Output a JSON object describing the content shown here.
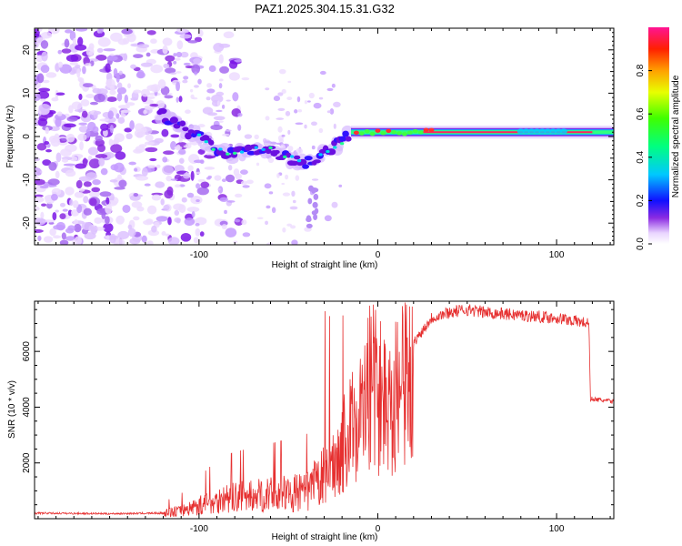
{
  "chart_data": [
    {
      "type": "heatmap",
      "title": "PAZ1.2025.304.15.31.G32",
      "xlabel": "Height of straight line (km)",
      "ylabel": "Frequency (Hz)",
      "xlim": [
        -192,
        132
      ],
      "ylim": [
        -25,
        25
      ],
      "xticks": [
        -100,
        0,
        100
      ],
      "yticks": [
        -20,
        -10,
        0,
        10,
        20
      ],
      "colorbar": {
        "label": "Normalized spectral amplitude",
        "range": [
          0,
          1
        ],
        "ticks": [
          "0.0",
          "0.2",
          "0.4",
          "0.6",
          "0.8"
        ]
      },
      "ridge": {
        "x": [
          -120,
          -110,
          -100,
          -90,
          -80,
          -70,
          -60,
          -50,
          -40,
          -30,
          -20,
          -15,
          -10,
          0,
          10,
          20,
          40,
          60,
          80,
          100,
          132
        ],
        "y": [
          5,
          2,
          0,
          -3,
          -4,
          -3,
          -3,
          -5,
          -6,
          -4,
          -1,
          1,
          1,
          2,
          1,
          1,
          1,
          1,
          1,
          1,
          1
        ]
      }
    },
    {
      "type": "line",
      "xlabel": "Height of straight line (km)",
      "ylabel": "SNR (10 * v/v)",
      "xlim": [
        -192,
        132
      ],
      "ylim": [
        0,
        7800
      ],
      "xticks": [
        -100,
        0,
        100
      ],
      "yticks": [
        2000,
        4000,
        6000
      ],
      "envelope": {
        "x": [
          -192,
          -150,
          -120,
          -110,
          -100,
          -90,
          -80,
          -70,
          -60,
          -50,
          -40,
          -30,
          -20,
          -10,
          -5,
          0,
          10,
          20,
          30,
          40,
          50,
          60,
          70,
          80,
          90,
          100,
          110,
          118,
          119,
          125,
          132
        ],
        "y": [
          200,
          180,
          200,
          300,
          500,
          700,
          800,
          850,
          900,
          950,
          1000,
          1600,
          3000,
          4500,
          4800,
          4900,
          5200,
          6300,
          7200,
          7400,
          7500,
          7400,
          7350,
          7300,
          7250,
          7200,
          7100,
          7000,
          4300,
          4250,
          4200
        ]
      }
    }
  ]
}
